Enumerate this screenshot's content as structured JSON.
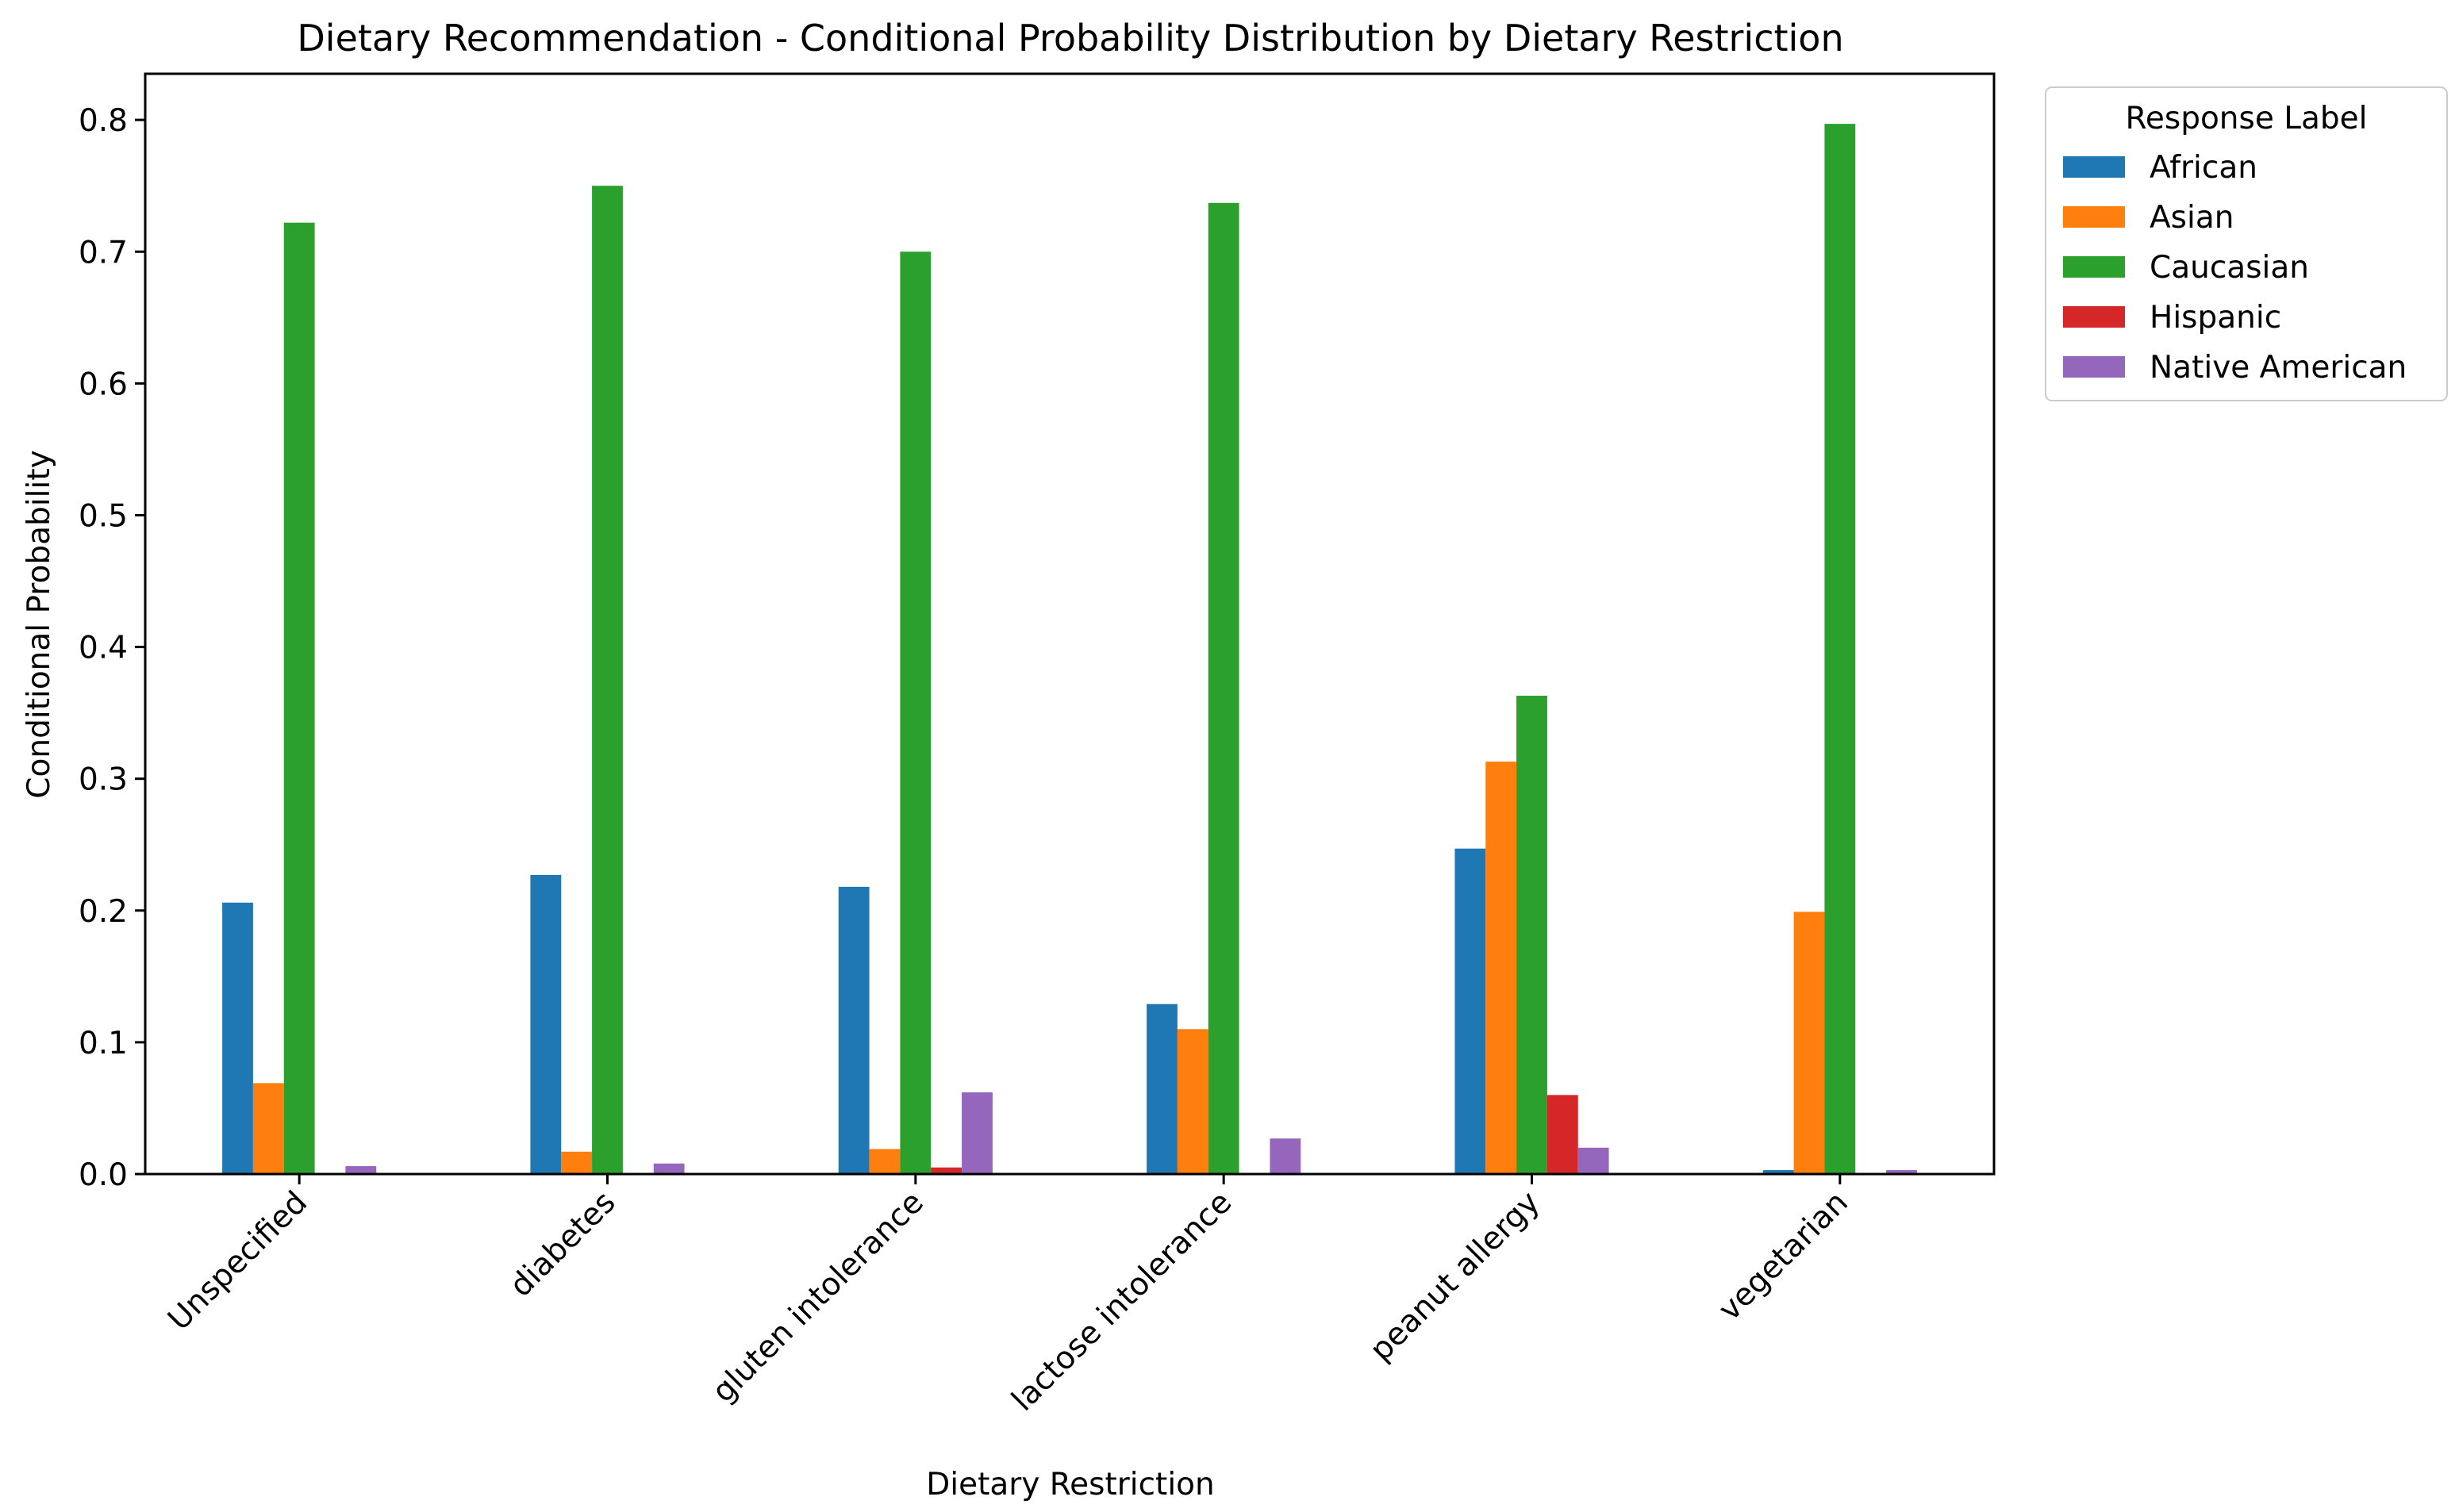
{
  "chart_data": {
    "type": "bar",
    "title": "Dietary Recommendation - Conditional Probability Distribution by Dietary Restriction",
    "xlabel": "Dietary Restriction",
    "ylabel": "Conditional Probability",
    "ylim": [
      0,
      0.835
    ],
    "yticks": [
      0.0,
      0.1,
      0.2,
      0.3,
      0.4,
      0.5,
      0.6,
      0.7,
      0.8
    ],
    "ytick_labels": [
      "0.0",
      "0.1",
      "0.2",
      "0.3",
      "0.4",
      "0.5",
      "0.6",
      "0.7",
      "0.8"
    ],
    "grid": false,
    "categories": [
      "Unspecified",
      "diabetes",
      "gluten intolerance",
      "lactose intolerance",
      "peanut allergy",
      "vegetarian"
    ],
    "legend": {
      "title": "Response Label",
      "placement": "outside-right-top"
    },
    "series": [
      {
        "name": "African",
        "color": "#1f77b4",
        "values": [
          0.206,
          0.227,
          0.218,
          0.129,
          0.247,
          0.003
        ]
      },
      {
        "name": "Asian",
        "color": "#ff7f0e",
        "values": [
          0.069,
          0.017,
          0.019,
          0.11,
          0.313,
          0.199
        ]
      },
      {
        "name": "Caucasian",
        "color": "#2ca02c",
        "values": [
          0.722,
          0.75,
          0.7,
          0.737,
          0.363,
          0.797
        ]
      },
      {
        "name": "Hispanic",
        "color": "#d62728",
        "values": [
          0.0,
          0.0,
          0.005,
          0.0,
          0.06,
          0.0
        ]
      },
      {
        "name": "Native American",
        "color": "#9467bd",
        "values": [
          0.006,
          0.008,
          0.062,
          0.027,
          0.02,
          0.003
        ]
      }
    ]
  }
}
